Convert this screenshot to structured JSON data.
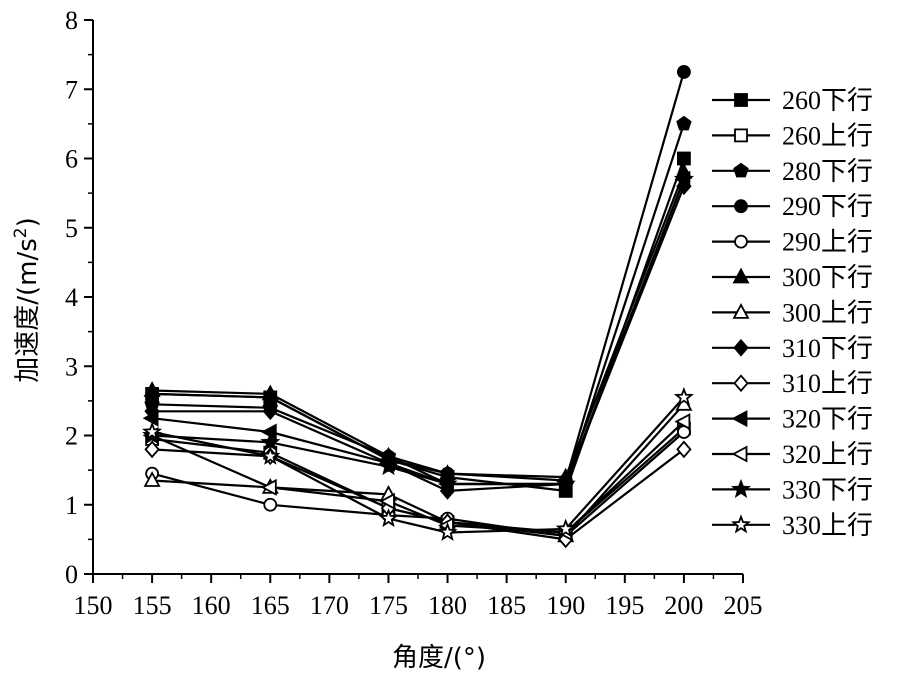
{
  "chart_data": {
    "type": "line",
    "xlabel": "角度/(°)",
    "ylabel_main": "加速度/(m/s",
    "ylabel_sup": "2",
    "ylabel_close": ")",
    "xlim": [
      150,
      205
    ],
    "ylim": [
      0,
      8
    ],
    "xticks": [
      150,
      155,
      160,
      165,
      170,
      175,
      180,
      185,
      190,
      195,
      200,
      205
    ],
    "yticks": [
      0,
      1,
      2,
      3,
      4,
      5,
      6,
      7,
      8
    ],
    "x": [
      155,
      165,
      175,
      180,
      190,
      200
    ],
    "legend_position": "right",
    "series": [
      {
        "name": "260下行",
        "marker": "square",
        "filled": true,
        "values": [
          2.6,
          2.55,
          1.65,
          1.4,
          1.2,
          6.0
        ]
      },
      {
        "name": "260上行",
        "marker": "square",
        "filled": false,
        "values": [
          1.95,
          1.75,
          0.95,
          0.75,
          0.6,
          2.1
        ]
      },
      {
        "name": "280下行",
        "marker": "pentagon",
        "filled": true,
        "values": [
          2.45,
          2.4,
          1.7,
          1.3,
          1.3,
          6.5
        ]
      },
      {
        "name": "290下行",
        "marker": "circle",
        "filled": true,
        "values": [
          2.6,
          2.55,
          1.65,
          1.45,
          1.35,
          7.25
        ]
      },
      {
        "name": "290上行",
        "marker": "circle",
        "filled": false,
        "values": [
          1.45,
          1.0,
          0.85,
          0.8,
          0.55,
          2.05
        ]
      },
      {
        "name": "300下行",
        "marker": "triangle",
        "filled": true,
        "values": [
          2.65,
          2.6,
          1.7,
          1.45,
          1.4,
          5.8
        ]
      },
      {
        "name": "300上行",
        "marker": "triangle",
        "filled": false,
        "values": [
          1.35,
          1.25,
          1.15,
          0.75,
          0.55,
          2.45
        ]
      },
      {
        "name": "310下行",
        "marker": "diamond",
        "filled": true,
        "values": [
          2.35,
          2.35,
          1.6,
          1.2,
          1.3,
          5.6
        ]
      },
      {
        "name": "310上行",
        "marker": "diamond",
        "filled": false,
        "values": [
          1.8,
          1.7,
          0.95,
          0.75,
          0.5,
          1.8
        ]
      },
      {
        "name": "320下行",
        "marker": "triangle-left",
        "filled": true,
        "values": [
          2.25,
          2.05,
          1.6,
          1.3,
          1.3,
          5.7
        ]
      },
      {
        "name": "320上行",
        "marker": "triangle-left",
        "filled": false,
        "values": [
          2.0,
          1.25,
          1.05,
          0.7,
          0.6,
          2.2
        ]
      },
      {
        "name": "330下行",
        "marker": "star",
        "filled": true,
        "values": [
          2.0,
          1.9,
          1.55,
          1.3,
          1.3,
          5.7
        ]
      },
      {
        "name": "330上行",
        "marker": "star",
        "filled": false,
        "values": [
          2.05,
          1.7,
          0.8,
          0.6,
          0.65,
          2.55
        ]
      }
    ]
  }
}
